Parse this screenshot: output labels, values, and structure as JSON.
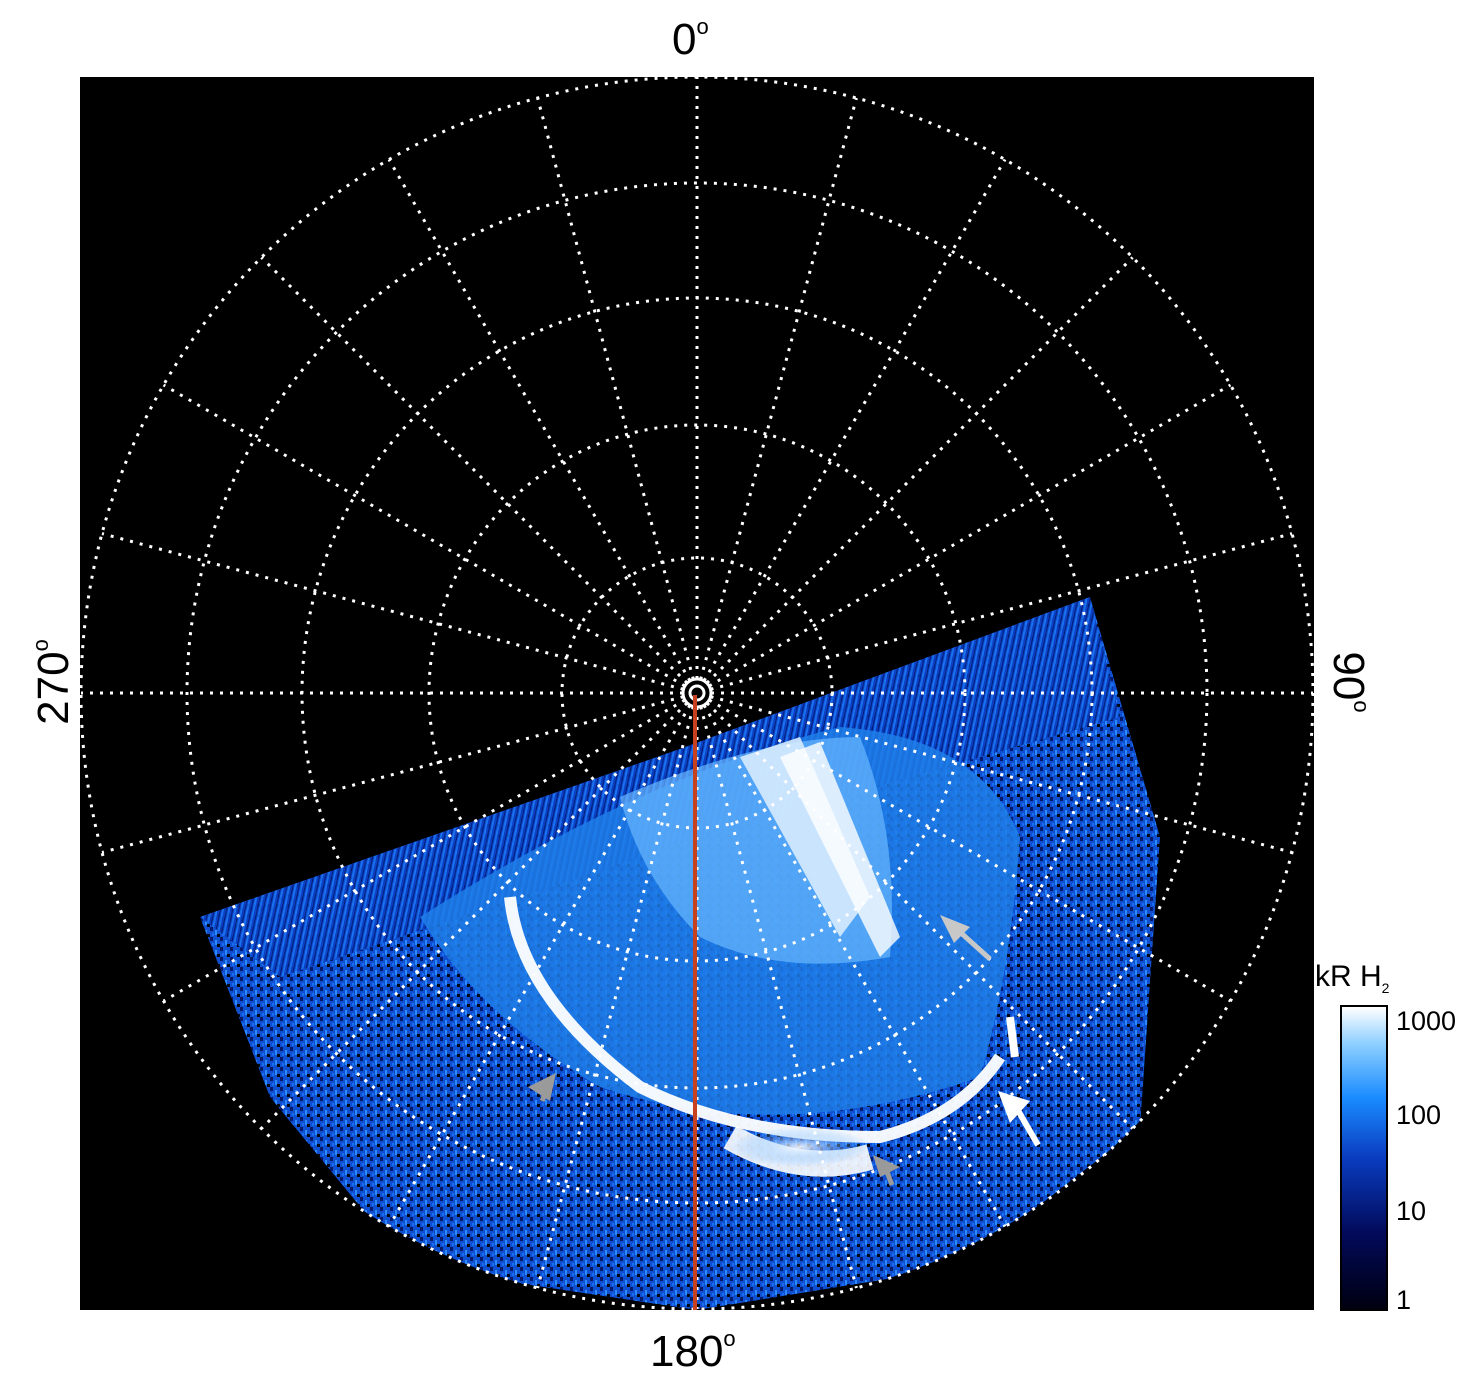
{
  "labels": {
    "top": "0",
    "bottom": "180",
    "left": "270",
    "right": "90",
    "degree_symbol": "o"
  },
  "colorbar": {
    "title": "kR H",
    "title_subscript": "2",
    "ticks": [
      "1000",
      "100",
      "10",
      "1"
    ]
  },
  "colors": {
    "background": "#000000",
    "grid": "#ffffff",
    "meridian_line": "#c8411e",
    "aurora_dim": "#0a3cc0",
    "aurora_mid": "#1a8cff",
    "aurora_bright": "#ffffff",
    "arrow_gray": "#9a9a9a",
    "arrow_white": "#ffffff"
  }
}
